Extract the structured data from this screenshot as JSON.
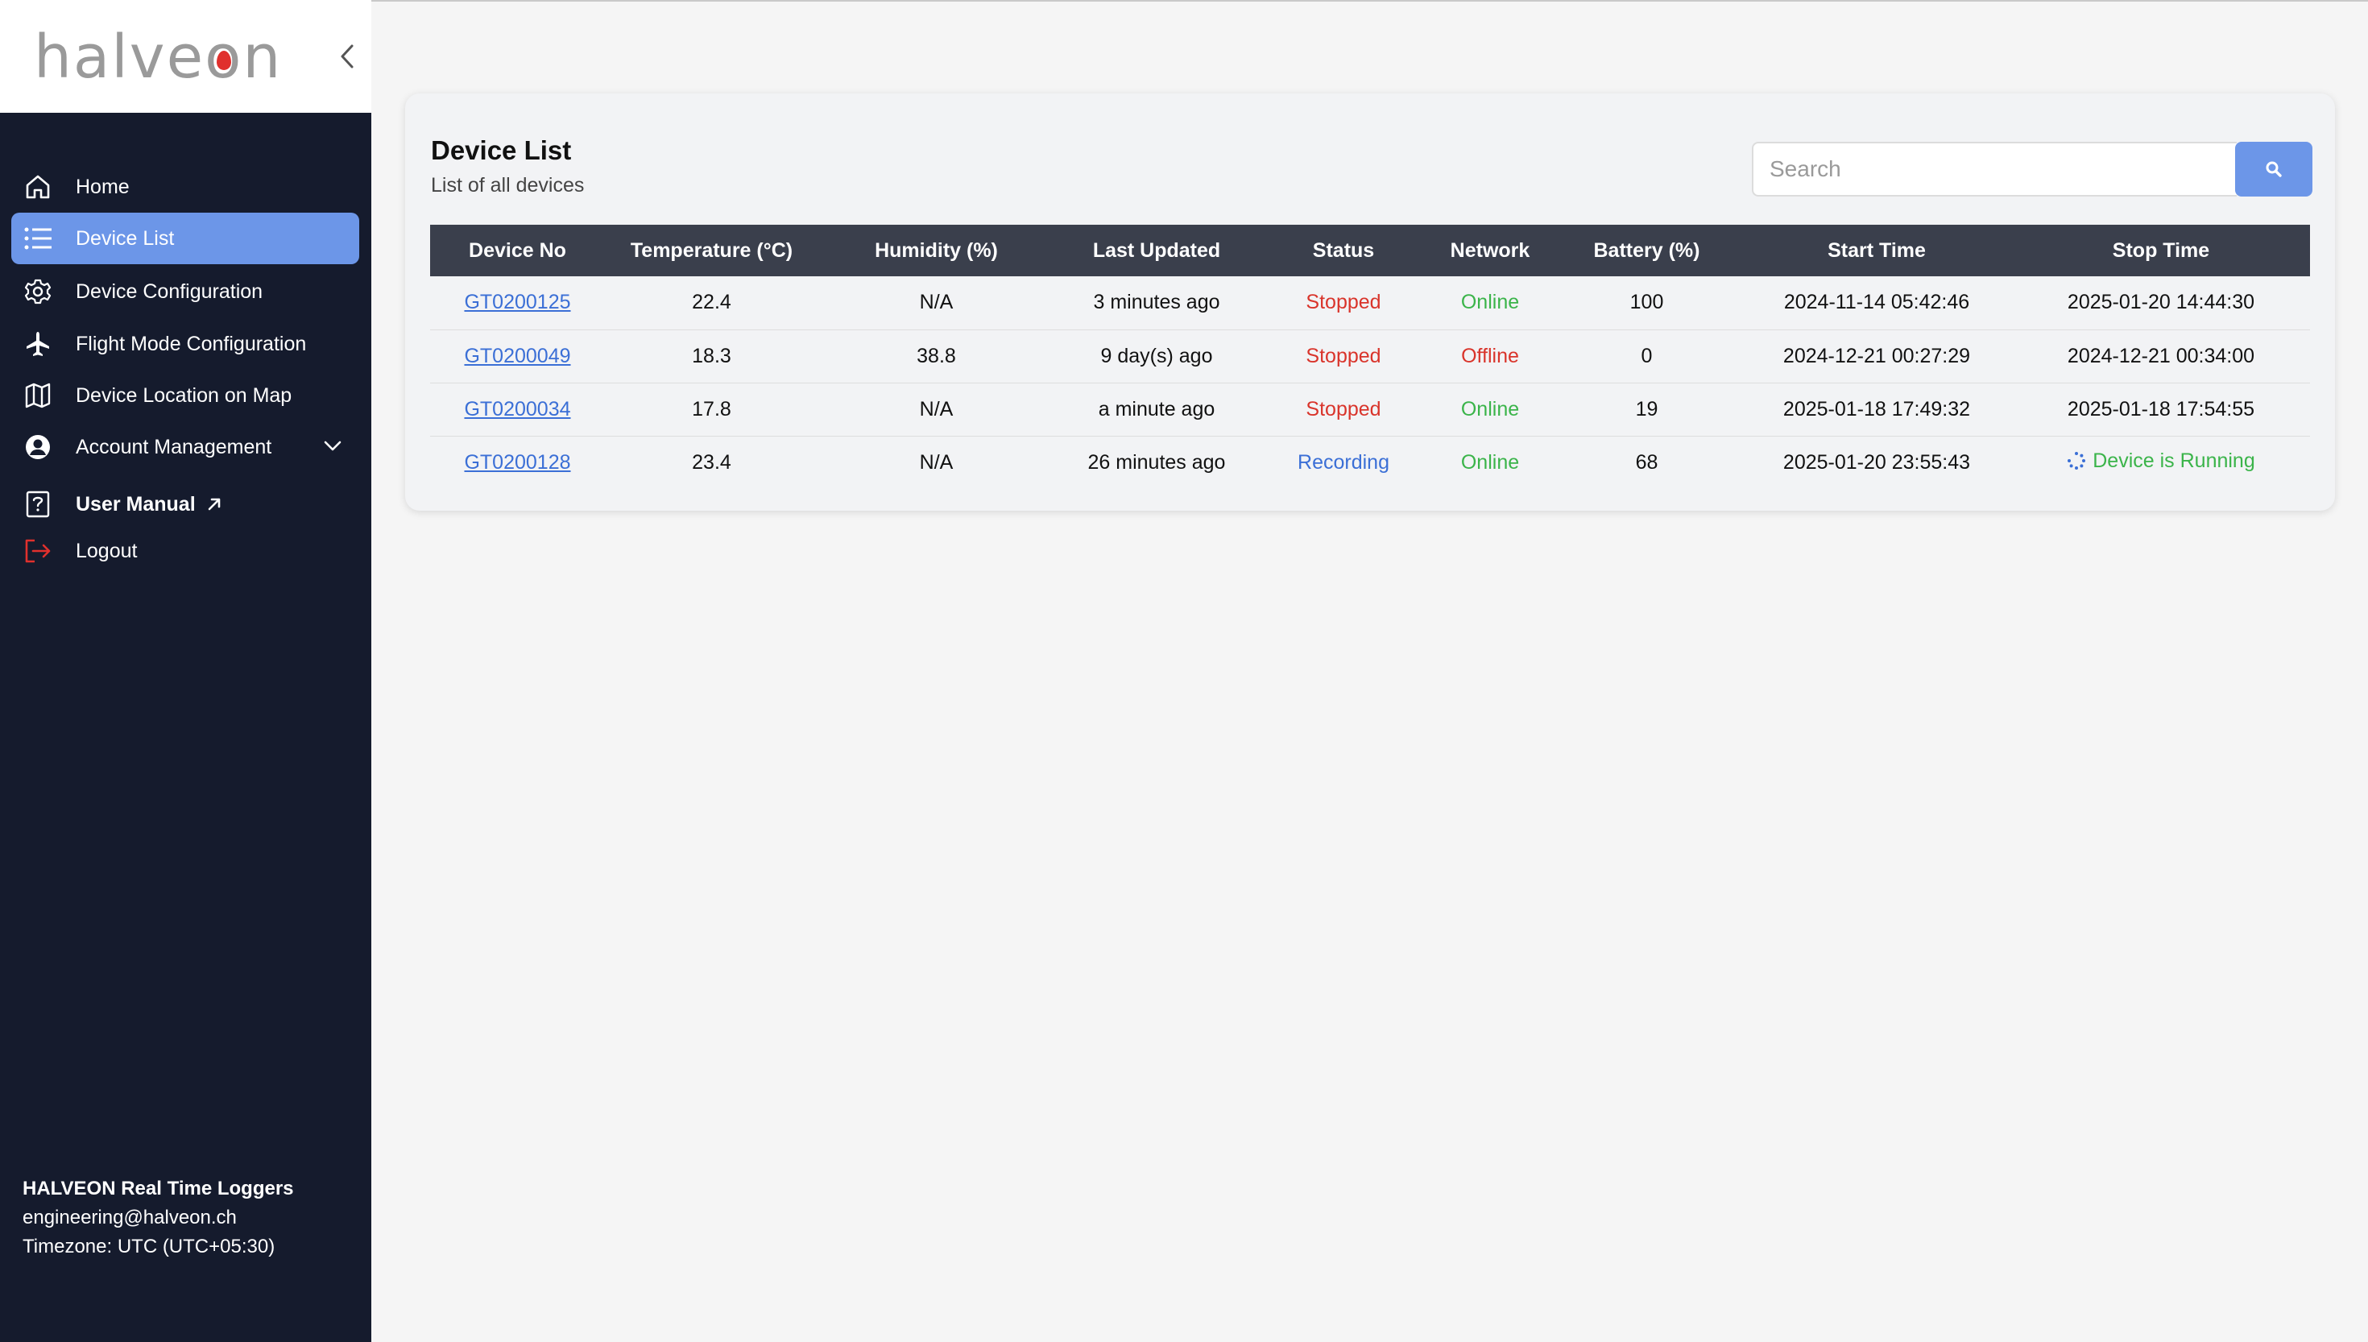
{
  "app": {
    "logo_prefix": "halve",
    "logo_o": "o",
    "logo_suffix": "n"
  },
  "sidebar": {
    "items": [
      {
        "label": "Home",
        "icon": "home-icon"
      },
      {
        "label": "Device List",
        "icon": "list-icon",
        "active": true
      },
      {
        "label": "Device Configuration",
        "icon": "gear-icon"
      },
      {
        "label": "Flight Mode Configuration",
        "icon": "airplane-icon"
      },
      {
        "label": "Device Location on Map",
        "icon": "map-icon"
      },
      {
        "label": "Account Management",
        "icon": "user-circle-icon"
      },
      {
        "label": "User Manual",
        "icon": "manual-icon"
      },
      {
        "label": "Logout",
        "icon": "logout-icon"
      }
    ],
    "footer": {
      "brand": "HALVEON Real Time Loggers",
      "email": "engineering@halveon.ch",
      "timezone": "Timezone: UTC (UTC+05:30)"
    }
  },
  "main": {
    "title": "Device List",
    "subtitle": "List of all devices",
    "search_placeholder": "Search",
    "table": {
      "columns": [
        "Device No",
        "Temperature (°C)",
        "Humidity (%)",
        "Last Updated",
        "Status",
        "Network",
        "Battery (%)",
        "Start Time",
        "Stop Time"
      ],
      "rows": [
        {
          "device": "GT0200125",
          "temp": "22.4",
          "humidity": "N/A",
          "updated": "3 minutes ago",
          "status": "Stopped",
          "network": "Online",
          "battery": "100",
          "start": "2024-11-14 05:42:46",
          "stop": "2025-01-20 14:44:30"
        },
        {
          "device": "GT0200049",
          "temp": "18.3",
          "humidity": "38.8",
          "updated": "9 day(s) ago",
          "status": "Stopped",
          "network": "Offline",
          "battery": "0",
          "start": "2024-12-21 00:27:29",
          "stop": "2024-12-21 00:34:00"
        },
        {
          "device": "GT0200034",
          "temp": "17.8",
          "humidity": "N/A",
          "updated": "a minute ago",
          "status": "Stopped",
          "network": "Online",
          "battery": "19",
          "start": "2025-01-18 17:49:32",
          "stop": "2025-01-18 17:54:55"
        },
        {
          "device": "GT0200128",
          "temp": "23.4",
          "humidity": "N/A",
          "updated": "26 minutes ago",
          "status": "Recording",
          "network": "Online",
          "battery": "68",
          "start": "2025-01-20 23:55:43",
          "stop": "Device is Running"
        }
      ]
    }
  },
  "colors": {
    "sidebar_bg": "#151b2d",
    "accent": "#6c96e8",
    "stopped": "#d9342b",
    "online": "#3bb44a",
    "recording": "#3b6fd6"
  }
}
